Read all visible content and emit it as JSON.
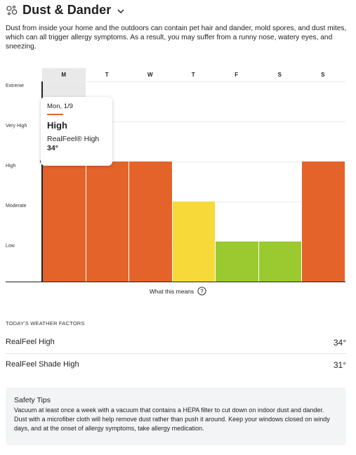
{
  "header": {
    "title": "Dust & Dander",
    "icon": "dust-particles-icon",
    "dropdown_icon": "chevron-down-icon"
  },
  "description": "Dust from inside your home and the outdoors can contain pet hair and dander, mold spores, and dust mites, which can all trigger allergy symptoms. As a result, you may suffer from a runny nose, watery eyes, and sneezing.",
  "chart_data": {
    "type": "bar",
    "categories": [
      "M",
      "T",
      "W",
      "T",
      "F",
      "S",
      "S"
    ],
    "levels": [
      "Low",
      "Moderate",
      "High",
      "Very High",
      "Extreme"
    ],
    "values": [
      3,
      3,
      3,
      2,
      1,
      1,
      3
    ],
    "colors": [
      "#e3632a",
      "#e3632a",
      "#e3632a",
      "#f8d93a",
      "#9ac930",
      "#9ac930",
      "#e3632a"
    ],
    "selected_index": 0,
    "ylim": [
      0,
      5
    ]
  },
  "tooltip": {
    "date": "Mon, 1/9",
    "level": "High",
    "realfeel_label": "RealFeel® High",
    "temp": "34°"
  },
  "what_this_means": "What this means",
  "factors": {
    "title": "TODAY'S WEATHER FACTORS",
    "rows": [
      {
        "label": "RealFeel High",
        "value": "34°"
      },
      {
        "label": "RealFeel Shade High",
        "value": "31°"
      }
    ]
  },
  "safety": {
    "title": "Safety Tips",
    "text": "Vacuum at least once a week with a vacuum that contains a HEPA filter to cut down on indoor dust and dander. Dust with a microfiber cloth will help remove dust rather than push it around. Keep your windows closed on windy days, and at the onset of allergy symptoms, take allergy medication."
  },
  "colors": {
    "accent": "#e3632a",
    "selected_bg": "#e9e9e9",
    "panel_bg": "#f2f4f6"
  }
}
